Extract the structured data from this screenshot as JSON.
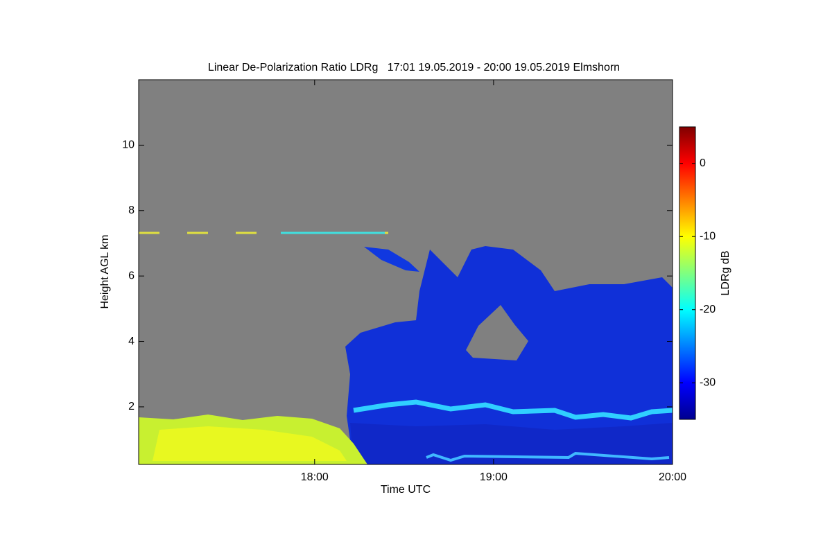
{
  "chart_data": {
    "type": "heatmap",
    "title": "Linear De-Polarization Ratio LDRg   17:01 19.05.2019 - 20:00 19.05.2019 Elmshorn",
    "x_label": "Time UTC",
    "y_label": "Height AGL km",
    "xlim": [
      17.0167,
      20
    ],
    "xticks": [
      {
        "value": 18,
        "label": "18:00"
      },
      {
        "value": 19,
        "label": "19:00"
      },
      {
        "value": 20,
        "label": "20:00"
      }
    ],
    "ylim": [
      0.24,
      12
    ],
    "yticks": [
      2,
      4,
      6,
      8,
      10
    ],
    "colorbar": {
      "label": "LDRg dB",
      "lim": [
        -35,
        5
      ],
      "ticks": [
        -30,
        -20,
        -10,
        0
      ],
      "colormap": "jet"
    }
  }
}
